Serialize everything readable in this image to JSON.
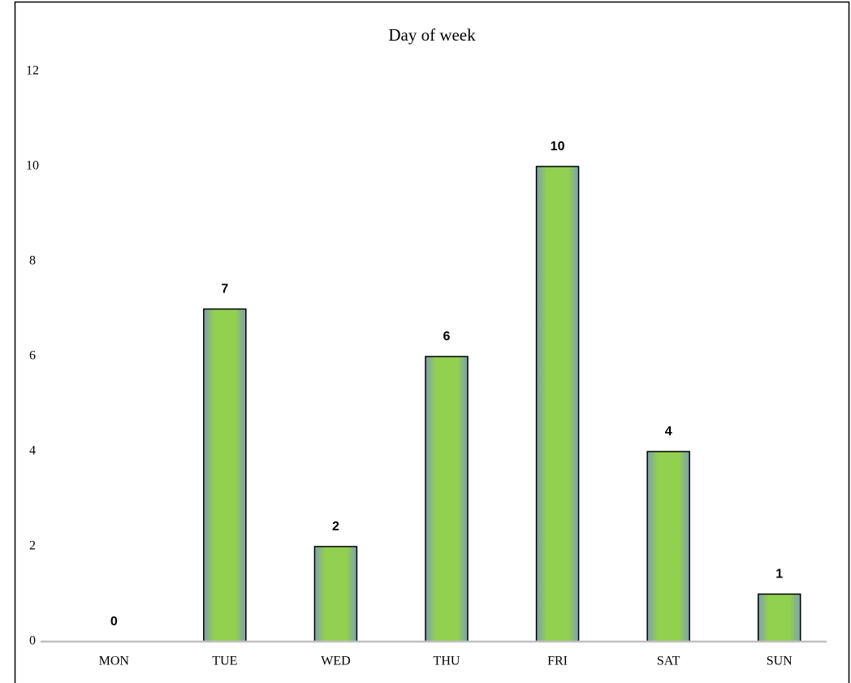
{
  "chart_data": {
    "type": "bar",
    "title": "Day of week",
    "categories": [
      "MON",
      "TUE",
      "WED",
      "THU",
      "FRI",
      "SAT",
      "SUN"
    ],
    "values": [
      0,
      7,
      2,
      6,
      10,
      4,
      1
    ],
    "color": "#92d050",
    "ylim": [
      0,
      12
    ],
    "yticks": [
      0,
      2,
      4,
      6,
      8,
      10,
      12
    ],
    "grid": false
  }
}
